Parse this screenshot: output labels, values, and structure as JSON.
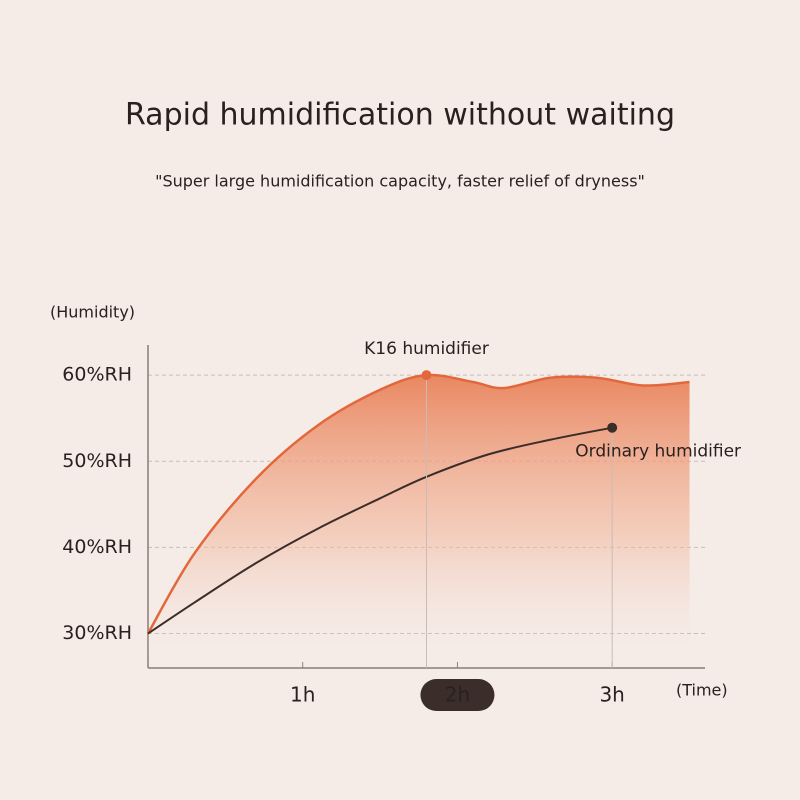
{
  "chart_data": {
    "type": "line",
    "title": "Rapid humidification without waiting",
    "subtitle": "\"Super large humidification capacity, faster relief of dryness\"",
    "y_label": "(Humidity)",
    "x_label": "(Time)",
    "series": [
      {
        "name": "K16 humidifier",
        "color": "#e2683c",
        "x": [
          0,
          0.3,
          0.7,
          1.1,
          1.5,
          1.8,
          2.1,
          2.3,
          2.6,
          2.9,
          3.2,
          3.5
        ],
        "values": [
          30,
          39.3,
          48,
          54.2,
          58.3,
          60,
          59.2,
          58.5,
          59.7,
          59.7,
          58.8,
          59.2
        ]
      },
      {
        "name": "Ordinary humidifier",
        "color": "#3b2d2a",
        "x": [
          0,
          0.3,
          0.7,
          1.1,
          1.5,
          1.8,
          2.2,
          2.6,
          3.0
        ],
        "values": [
          30,
          33.6,
          38.2,
          42.2,
          45.7,
          48.2,
          50.8,
          52.5,
          53.9
        ]
      }
    ],
    "xlim": [
      0,
      3.6
    ],
    "ylim": [
      26,
      63.5
    ],
    "xticks": [
      {
        "value": 1,
        "label": "1h"
      },
      {
        "value": 2,
        "label": "2h"
      },
      {
        "value": 3,
        "label": "3h"
      }
    ],
    "yticks": [
      {
        "value": 30,
        "label": "30%RH"
      },
      {
        "value": 40,
        "label": "40%RH"
      },
      {
        "value": 50,
        "label": "50%RH"
      },
      {
        "value": 60,
        "label": "60%RH"
      }
    ],
    "highlighted_xtick": 1,
    "grid": true
  }
}
